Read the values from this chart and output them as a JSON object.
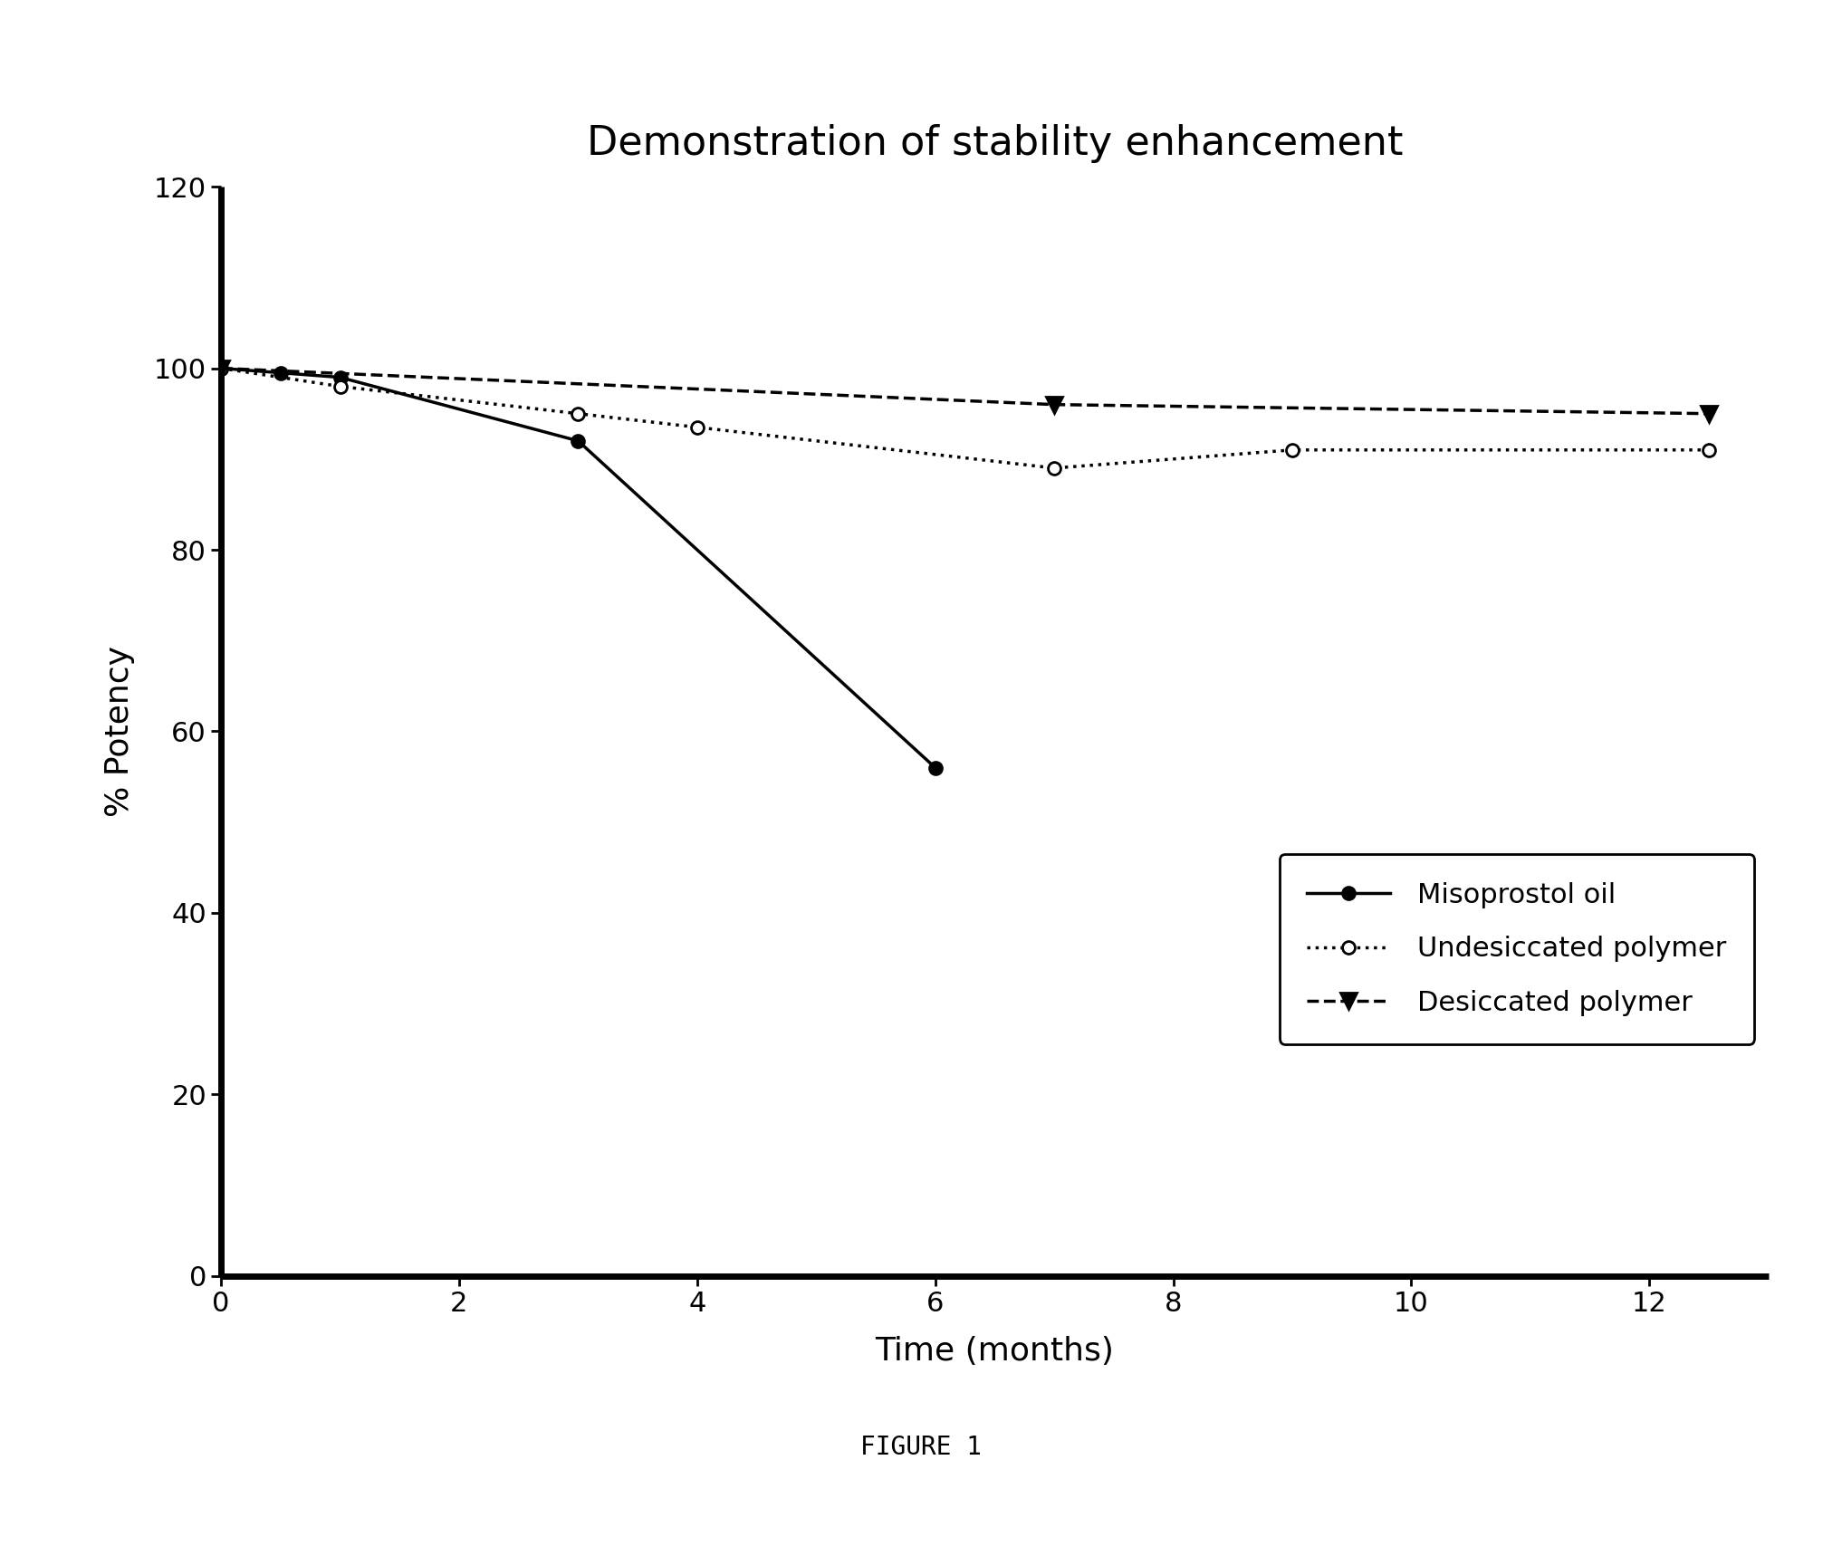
{
  "title": "Demonstration of stability enhancement",
  "xlabel": "Time (months)",
  "ylabel": "% Potency",
  "figure_caption": "FIGURE 1",
  "xlim": [
    0,
    13
  ],
  "ylim": [
    0,
    120
  ],
  "xticks": [
    0,
    2,
    4,
    6,
    8,
    10,
    12
  ],
  "yticks": [
    0,
    20,
    40,
    60,
    80,
    100,
    120
  ],
  "series": [
    {
      "label": "Misoprostol oil",
      "x": [
        0,
        0.5,
        1,
        3,
        6
      ],
      "y": [
        100,
        99.5,
        99,
        92,
        56
      ],
      "color": "black",
      "linestyle": "-",
      "linewidth": 2.5,
      "marker": "o",
      "marker_size": 10,
      "marker_facecolor": "black",
      "marker_edgecolor": "black"
    },
    {
      "label": "Undesiccated polymer",
      "x": [
        0,
        1,
        3,
        4,
        7,
        9,
        12.5
      ],
      "y": [
        100,
        98,
        95,
        93.5,
        89,
        91,
        91
      ],
      "color": "black",
      "linestyle": ":",
      "linewidth": 2.5,
      "marker": "o",
      "marker_size": 10,
      "marker_facecolor": "white",
      "marker_edgecolor": "black"
    },
    {
      "label": "Desiccated polymer",
      "x": [
        0,
        7,
        12.5
      ],
      "y": [
        100,
        96,
        95
      ],
      "color": "black",
      "linestyle": "--",
      "linewidth": 2.5,
      "marker": "v",
      "marker_size": 13,
      "marker_facecolor": "black",
      "marker_edgecolor": "black"
    }
  ],
  "axis_linewidth": 5.0,
  "background_color": "white",
  "title_fontsize": 32,
  "axis_label_fontsize": 26,
  "tick_label_fontsize": 22,
  "legend_fontsize": 22,
  "caption_fontsize": 20
}
